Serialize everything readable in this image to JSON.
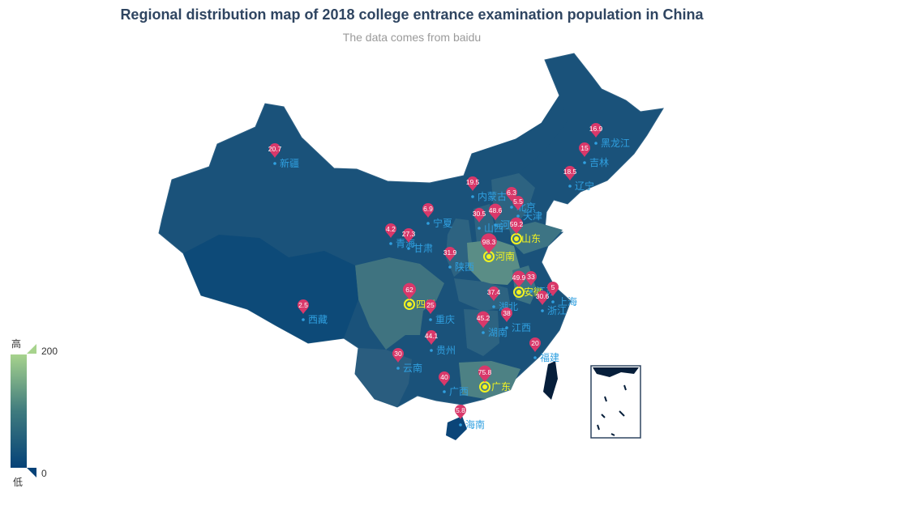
{
  "title": "Regional distribution map of 2018 college entrance examination population in China",
  "subtitle": "The data comes from baidu",
  "visual_map": {
    "max_label": "高",
    "min_label": "低",
    "max_value": "200",
    "min_value": "0",
    "color_high": "#a7d38d",
    "color_low": "#054278"
  },
  "colors": {
    "pin": "#d9386a",
    "highlight_label": "#f3f320",
    "province_label": "#30a0e0",
    "pin_text": "#ffffff"
  },
  "chart_data": {
    "type": "map",
    "title": "Regional distribution map of 2018 college entrance examination population in China",
    "subtitle": "The data comes from baidu",
    "value_range": [
      0,
      200
    ],
    "top5_highlighted": [
      "河南",
      "广东",
      "山东",
      "四川",
      "安徽"
    ],
    "regions": [
      {
        "name": "黑龙江",
        "value": 16.9
      },
      {
        "name": "吉林",
        "value": 15
      },
      {
        "name": "辽宁",
        "value": 18.5
      },
      {
        "name": "内蒙古",
        "value": 19.5
      },
      {
        "name": "北京",
        "value": 6.3
      },
      {
        "name": "天津",
        "value": 5.5
      },
      {
        "name": "河北",
        "value": 48.6
      },
      {
        "name": "山西",
        "value": 30.5
      },
      {
        "name": "山东",
        "value": 59.2
      },
      {
        "name": "宁夏",
        "value": 6.9
      },
      {
        "name": "青海",
        "value": 4.2
      },
      {
        "name": "甘肃",
        "value": 27.3
      },
      {
        "name": "陕西",
        "value": 31.9
      },
      {
        "name": "河南",
        "value": 98.3
      },
      {
        "name": "新疆",
        "value": 20.7
      },
      {
        "name": "西藏",
        "value": 2.5
      },
      {
        "name": "四川",
        "value": 62
      },
      {
        "name": "重庆",
        "value": 25
      },
      {
        "name": "湖北",
        "value": 37.4
      },
      {
        "name": "安徽",
        "value": 49.9
      },
      {
        "name": "江苏",
        "value": 33
      },
      {
        "name": "上海",
        "value": 5
      },
      {
        "name": "浙江",
        "value": 30.6
      },
      {
        "name": "湖南",
        "value": 45.2
      },
      {
        "name": "江西",
        "value": 38
      },
      {
        "name": "贵州",
        "value": 44.1
      },
      {
        "name": "云南",
        "value": 30
      },
      {
        "name": "福建",
        "value": 20
      },
      {
        "name": "广西",
        "value": 40
      },
      {
        "name": "广东",
        "value": 75.8
      },
      {
        "name": "海南",
        "value": 5.8
      }
    ]
  }
}
